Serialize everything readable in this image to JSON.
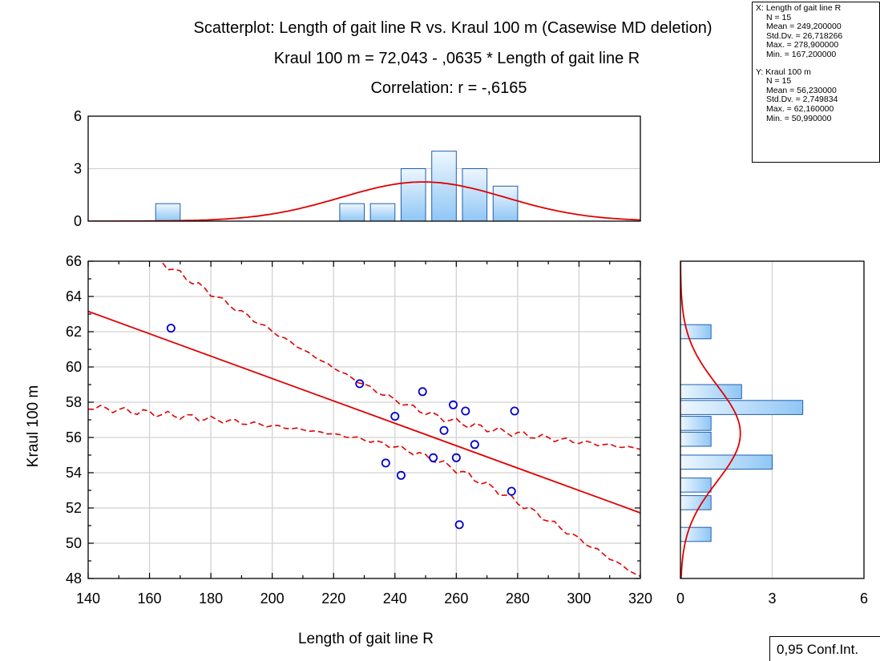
{
  "chart_data": {
    "type": "scatter",
    "title": "Scatterplot: Length of gait line R vs. Kraul 100 m (Casewise MD deletion)",
    "equation": "Kraul 100 m = 72,043 - ,0635  * Length of gait line R",
    "correlation": "Correlation: r = -,6165",
    "xlabel": "Length of gait line R",
    "ylabel": "Kraul 100 m",
    "xlim": [
      140,
      320
    ],
    "ylim": [
      48,
      66
    ],
    "x_ticks": [
      "140",
      "160",
      "180",
      "200",
      "220",
      "240",
      "260",
      "280",
      "300",
      "320"
    ],
    "y_ticks": [
      "48",
      "50",
      "52",
      "54",
      "56",
      "58",
      "60",
      "62",
      "64",
      "66"
    ],
    "points": [
      {
        "x": 167,
        "y": 62.2
      },
      {
        "x": 228.5,
        "y": 59.05
      },
      {
        "x": 237,
        "y": 54.55
      },
      {
        "x": 240,
        "y": 57.2
      },
      {
        "x": 242,
        "y": 53.85
      },
      {
        "x": 249,
        "y": 58.6
      },
      {
        "x": 252.5,
        "y": 54.85
      },
      {
        "x": 256,
        "y": 56.4
      },
      {
        "x": 259,
        "y": 57.85
      },
      {
        "x": 260,
        "y": 54.85
      },
      {
        "x": 261,
        "y": 51.05
      },
      {
        "x": 263,
        "y": 57.5
      },
      {
        "x": 266,
        "y": 55.6
      },
      {
        "x": 278,
        "y": 52.95
      },
      {
        "x": 279,
        "y": 57.5
      }
    ],
    "regression": {
      "intercept": 72.043,
      "slope": -0.0635
    },
    "confidence_band_label": "0,95 Conf.Int.",
    "x_histogram": {
      "ylim": [
        0,
        6
      ],
      "y_ticks": [
        "0",
        "3",
        "6"
      ],
      "bins": [
        {
          "from": 162,
          "to": 170,
          "count": 1
        },
        {
          "from": 222,
          "to": 230,
          "count": 1
        },
        {
          "from": 232,
          "to": 240,
          "count": 1
        },
        {
          "from": 242,
          "to": 250,
          "count": 3
        },
        {
          "from": 252,
          "to": 260,
          "count": 4
        },
        {
          "from": 262,
          "to": 270,
          "count": 3
        },
        {
          "from": 272,
          "to": 280,
          "count": 2
        }
      ]
    },
    "y_histogram": {
      "xlim": [
        0,
        6
      ],
      "x_ticks": [
        "0",
        "3",
        "6"
      ],
      "bins": [
        {
          "from": 50.1,
          "to": 50.9,
          "count": 1
        },
        {
          "from": 51.9,
          "to": 52.7,
          "count": 1
        },
        {
          "from": 52.9,
          "to": 53.7,
          "count": 1
        },
        {
          "from": 54.2,
          "to": 55,
          "count": 3
        },
        {
          "from": 55.5,
          "to": 56.3,
          "count": 1
        },
        {
          "from": 56.4,
          "to": 57.2,
          "count": 1
        },
        {
          "from": 57.3,
          "to": 58.1,
          "count": 4
        },
        {
          "from": 58.2,
          "to": 59,
          "count": 2
        },
        {
          "from": 61.6,
          "to": 62.4,
          "count": 1
        }
      ]
    },
    "x_stats": [
      "X:  Length of gait line R",
      "N = 15",
      "Mean = 249,200000",
      "Std.Dv. = 26,718266",
      "Max. = 278,900000",
      "Min. = 167,200000"
    ],
    "y_stats": [
      "Y:  Kraul 100 m",
      "N = 15",
      "Mean = 56,230000",
      "Std.Dv. = 2,749834",
      "Max. = 62,160000",
      "Min. = 50,990000"
    ],
    "colors": {
      "points": "#0000cc",
      "line": "#e00000",
      "bar_fill": "#8fc6f5",
      "bar_light": "#eef7ff",
      "bar_stroke": "#1e5fb0"
    }
  }
}
